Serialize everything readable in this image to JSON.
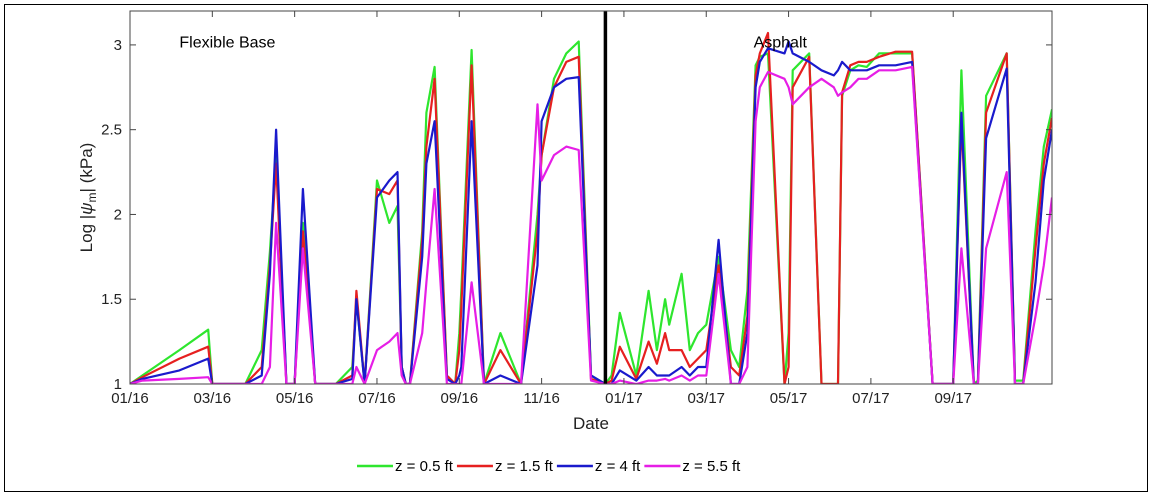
{
  "chart_data": {
    "type": "line",
    "xlabel": "Date",
    "ylabel": "Log |ψm| (kPa)",
    "ylabel_parts": {
      "prefix": "Log |",
      "psi": "ψ",
      "sub": "m",
      "suffix": "| (kPa)"
    },
    "x_unit": "month",
    "x_range": [
      "2016-01",
      "2017-11"
    ],
    "x_ticks": [
      {
        "label": "01/16",
        "month": 0
      },
      {
        "label": "03/16",
        "month": 2
      },
      {
        "label": "05/16",
        "month": 4
      },
      {
        "label": "07/16",
        "month": 6
      },
      {
        "label": "09/16",
        "month": 8
      },
      {
        "label": "11/16",
        "month": 10
      },
      {
        "label": "01/17",
        "month": 12
      },
      {
        "label": "03/17",
        "month": 14
      },
      {
        "label": "05/17",
        "month": 16
      },
      {
        "label": "07/17",
        "month": 18
      },
      {
        "label": "09/17",
        "month": 20
      }
    ],
    "ylim": [
      1,
      3.2
    ],
    "y_ticks": [
      {
        "label": "1",
        "value": 1
      },
      {
        "label": "1.5",
        "value": 1.5
      },
      {
        "label": "2",
        "value": 2
      },
      {
        "label": "2.5",
        "value": 2.5
      },
      {
        "label": "3",
        "value": 3
      }
    ],
    "grid": false,
    "legend_position": "bottom",
    "divider_x": 11.55,
    "annotations": [
      {
        "text": "Flexible Base",
        "x": 1.2,
        "y": 3.02
      },
      {
        "text": "Asphalt",
        "x": 15.15,
        "y": 3.02
      }
    ],
    "series": [
      {
        "name": "z = 0.5 ft",
        "color": "#2ee62e",
        "x": [
          0,
          0.3,
          1.2,
          1.9,
          2.0,
          2.05,
          2.8,
          3.2,
          3.4,
          3.55,
          3.8,
          4.0,
          4.2,
          4.5,
          4.8,
          5.0,
          5.4,
          5.5,
          5.7,
          6.0,
          6.3,
          6.5,
          6.6,
          6.7,
          6.8,
          7.1,
          7.2,
          7.4,
          7.7,
          7.9,
          8.0,
          8.05,
          8.3,
          8.6,
          9.0,
          9.5,
          9.9,
          10.0,
          10.3,
          10.6,
          10.9,
          11.2,
          11.55,
          11.7,
          11.9,
          12.3,
          12.6,
          12.8,
          13.0,
          13.1,
          13.4,
          13.6,
          13.8,
          14.0,
          14.3,
          14.6,
          14.8,
          15.0,
          15.2,
          15.3,
          15.5,
          15.9,
          16.0,
          16.1,
          16.5,
          16.8,
          17.1,
          17.2,
          17.3,
          17.5,
          17.7,
          17.9,
          18.2,
          18.6,
          19.0,
          19.5,
          19.9,
          20.0,
          20.2,
          20.5,
          20.6,
          20.8,
          21.3,
          21.5,
          21.7,
          22.0,
          22.2,
          22.4
        ],
        "values": [
          1.0,
          1.05,
          1.2,
          1.32,
          1.0,
          1.0,
          1.0,
          1.2,
          1.78,
          2.35,
          1.0,
          1.0,
          1.95,
          1.0,
          1.0,
          1.0,
          1.1,
          1.5,
          1.0,
          2.2,
          1.95,
          2.05,
          1.1,
          1.0,
          1.0,
          1.9,
          2.6,
          2.87,
          1.05,
          1.0,
          1.3,
          1.55,
          2.97,
          1.0,
          1.3,
          1.0,
          2.0,
          2.35,
          2.8,
          2.95,
          3.02,
          1.05,
          1.0,
          1.05,
          1.42,
          1.05,
          1.55,
          1.2,
          1.5,
          1.35,
          1.65,
          1.2,
          1.3,
          1.35,
          1.75,
          1.2,
          1.1,
          1.55,
          2.88,
          2.93,
          2.95,
          1.0,
          1.3,
          2.85,
          2.95,
          1.0,
          1.0,
          1.0,
          2.7,
          2.85,
          2.88,
          2.87,
          2.95,
          2.95,
          2.95,
          1.0,
          1.0,
          1.0,
          2.85,
          1.0,
          1.02,
          2.7,
          2.95,
          1.02,
          1.02,
          1.9,
          2.4,
          2.62
        ]
      },
      {
        "name": "z = 1.5 ft",
        "color": "#e62020",
        "x": [
          0,
          0.3,
          1.2,
          1.9,
          2.0,
          2.05,
          2.8,
          3.2,
          3.4,
          3.55,
          3.8,
          4.0,
          4.2,
          4.5,
          4.8,
          5.0,
          5.4,
          5.5,
          5.7,
          6.0,
          6.3,
          6.5,
          6.6,
          6.7,
          6.8,
          7.1,
          7.2,
          7.4,
          7.7,
          7.9,
          8.0,
          8.05,
          8.3,
          8.6,
          9.0,
          9.5,
          9.9,
          10.0,
          10.3,
          10.6,
          10.9,
          11.2,
          11.55,
          11.7,
          11.9,
          12.3,
          12.6,
          12.8,
          13.0,
          13.1,
          13.4,
          13.6,
          13.8,
          14.0,
          14.3,
          14.6,
          14.8,
          15.0,
          15.2,
          15.3,
          15.5,
          15.9,
          16.0,
          16.1,
          16.5,
          16.8,
          17.1,
          17.2,
          17.3,
          17.5,
          17.7,
          17.9,
          18.2,
          18.6,
          19.0,
          19.5,
          19.9,
          20.0,
          20.2,
          20.5,
          20.6,
          20.8,
          21.3,
          21.5,
          21.7,
          22.0,
          22.2,
          22.4
        ],
        "values": [
          1.0,
          1.04,
          1.15,
          1.22,
          1.0,
          1.0,
          1.0,
          1.1,
          1.7,
          2.3,
          1.0,
          1.0,
          1.9,
          1.0,
          1.0,
          1.0,
          1.05,
          1.55,
          1.0,
          2.15,
          2.12,
          2.2,
          1.1,
          1.0,
          1.0,
          1.85,
          2.4,
          2.8,
          1.05,
          1.0,
          1.2,
          1.45,
          2.88,
          1.0,
          1.2,
          1.0,
          1.9,
          2.35,
          2.75,
          2.9,
          2.93,
          1.03,
          1.0,
          1.02,
          1.22,
          1.03,
          1.25,
          1.12,
          1.3,
          1.2,
          1.2,
          1.1,
          1.15,
          1.2,
          1.7,
          1.1,
          1.05,
          1.4,
          2.82,
          2.95,
          3.07,
          1.0,
          1.1,
          2.75,
          2.93,
          1.0,
          1.0,
          1.0,
          2.72,
          2.88,
          2.9,
          2.9,
          2.93,
          2.96,
          2.96,
          1.0,
          1.0,
          1.0,
          2.55,
          1.0,
          1.0,
          2.6,
          2.95,
          1.0,
          1.0,
          1.8,
          2.3,
          2.57
        ]
      },
      {
        "name": "z = 4 ft",
        "color": "#1a1acc",
        "x": [
          0,
          0.3,
          1.2,
          1.9,
          2.0,
          2.05,
          2.8,
          3.2,
          3.4,
          3.55,
          3.8,
          4.0,
          4.2,
          4.5,
          4.8,
          5.0,
          5.4,
          5.5,
          5.7,
          6.0,
          6.3,
          6.5,
          6.6,
          6.7,
          6.8,
          7.1,
          7.2,
          7.4,
          7.7,
          7.9,
          8.0,
          8.05,
          8.3,
          8.6,
          9.0,
          9.5,
          9.9,
          10.0,
          10.3,
          10.6,
          10.9,
          11.2,
          11.55,
          11.7,
          11.9,
          12.3,
          12.6,
          12.8,
          13.0,
          13.1,
          13.4,
          13.6,
          13.8,
          14.0,
          14.3,
          14.6,
          14.8,
          15.0,
          15.2,
          15.3,
          15.5,
          15.9,
          16.0,
          16.1,
          16.5,
          16.8,
          17.1,
          17.2,
          17.3,
          17.5,
          17.7,
          17.9,
          18.2,
          18.6,
          19.0,
          19.5,
          19.9,
          20.0,
          20.2,
          20.5,
          20.6,
          20.8,
          21.3,
          21.5,
          21.7,
          22.0,
          22.2,
          22.4
        ],
        "values": [
          1.0,
          1.03,
          1.08,
          1.15,
          1.0,
          1.0,
          1.0,
          1.05,
          1.65,
          2.5,
          1.0,
          1.0,
          2.15,
          1.0,
          1.0,
          1.0,
          1.03,
          1.5,
          1.0,
          2.1,
          2.2,
          2.25,
          1.1,
          1.0,
          1.0,
          1.75,
          2.3,
          2.55,
          1.03,
          1.0,
          1.05,
          1.1,
          2.55,
          1.0,
          1.05,
          1.0,
          1.7,
          2.55,
          2.75,
          2.8,
          2.81,
          1.05,
          1.0,
          1.0,
          1.08,
          1.02,
          1.1,
          1.05,
          1.05,
          1.05,
          1.1,
          1.05,
          1.1,
          1.1,
          1.85,
          1.0,
          1.0,
          1.3,
          2.75,
          2.9,
          2.98,
          2.95,
          3.02,
          2.95,
          2.9,
          2.85,
          2.82,
          2.85,
          2.9,
          2.85,
          2.85,
          2.85,
          2.88,
          2.88,
          2.9,
          1.0,
          1.0,
          1.0,
          2.6,
          1.0,
          1.0,
          2.45,
          2.86,
          1.0,
          1.0,
          1.6,
          2.2,
          2.5
        ]
      },
      {
        "name": "z = 5.5 ft",
        "color": "#e61ee6",
        "x": [
          0,
          0.3,
          1.2,
          1.9,
          2.0,
          2.05,
          2.8,
          3.2,
          3.4,
          3.55,
          3.8,
          4.0,
          4.2,
          4.5,
          4.8,
          5.0,
          5.4,
          5.5,
          5.7,
          6.0,
          6.3,
          6.5,
          6.6,
          6.7,
          6.8,
          7.1,
          7.2,
          7.4,
          7.7,
          7.9,
          8.0,
          8.05,
          8.3,
          8.6,
          9.0,
          9.5,
          9.9,
          10.0,
          10.3,
          10.6,
          10.9,
          11.2,
          11.55,
          11.7,
          11.9,
          12.3,
          12.6,
          12.8,
          13.0,
          13.1,
          13.4,
          13.6,
          13.8,
          14.0,
          14.3,
          14.6,
          14.8,
          15.0,
          15.2,
          15.3,
          15.5,
          15.9,
          16.0,
          16.1,
          16.5,
          16.8,
          17.1,
          17.2,
          17.3,
          17.5,
          17.7,
          17.9,
          18.2,
          18.6,
          19.0,
          19.5,
          19.9,
          20.0,
          20.2,
          20.5,
          20.6,
          20.8,
          21.3,
          21.5,
          21.7,
          22.0,
          22.2,
          22.4
        ],
        "values": [
          1.0,
          1.02,
          1.03,
          1.04,
          1.0,
          1.0,
          1.0,
          1.0,
          1.1,
          1.95,
          1.0,
          1.0,
          1.8,
          1.0,
          1.0,
          1.0,
          1.0,
          1.1,
          1.0,
          1.2,
          1.25,
          1.3,
          1.05,
          1.0,
          1.0,
          1.3,
          1.6,
          2.15,
          1.0,
          1.0,
          1.0,
          1.0,
          1.6,
          1.0,
          1.0,
          1.0,
          2.65,
          2.2,
          2.35,
          2.4,
          2.38,
          1.02,
          1.0,
          1.0,
          1.02,
          1.0,
          1.02,
          1.02,
          1.03,
          1.02,
          1.05,
          1.02,
          1.05,
          1.05,
          1.65,
          1.0,
          1.0,
          1.1,
          2.55,
          2.75,
          2.84,
          2.8,
          2.75,
          2.65,
          2.75,
          2.8,
          2.75,
          2.7,
          2.72,
          2.75,
          2.8,
          2.8,
          2.85,
          2.85,
          2.87,
          1.0,
          1.0,
          1.0,
          1.8,
          1.0,
          1.0,
          1.8,
          2.25,
          1.0,
          1.0,
          1.4,
          1.7,
          2.1
        ]
      }
    ]
  }
}
